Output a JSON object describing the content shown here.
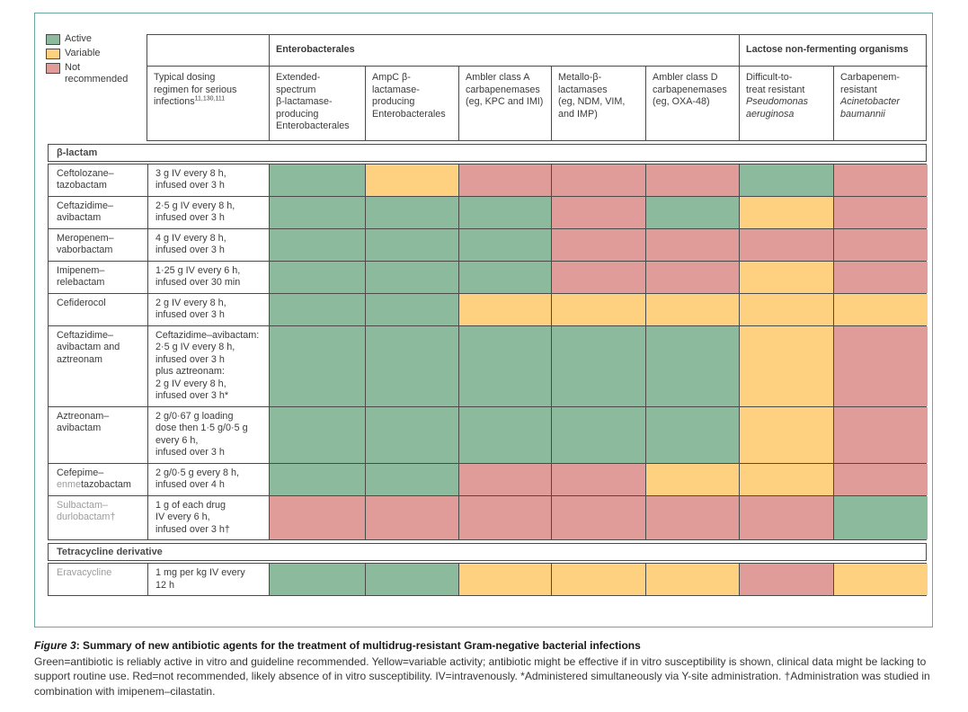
{
  "colors": {
    "green": "#8cba9d",
    "yellow": "#fdd17f",
    "red": "#e09c98",
    "grid_line": "#4a4a48",
    "frame_border": "#6aa9a0",
    "inactive_drug_text": "#9c9c9c"
  },
  "legend": {
    "items": [
      {
        "label": "Active",
        "key": "green",
        "color": "#8cba9d"
      },
      {
        "label": "Variable",
        "key": "yellow",
        "color": "#fdd17f"
      },
      {
        "label": "Not recommended",
        "key": "red",
        "color": "#e09c98"
      }
    ]
  },
  "header": {
    "groups": [
      {
        "label": "Enterobacterales",
        "span": 5
      },
      {
        "label": "Lactose non-fermenting organisms",
        "span": 2
      }
    ],
    "dosing_header": {
      "text": "Typical dosing\nregimen for serious\ninfections",
      "superscript": "11,130,111"
    },
    "columns": [
      {
        "text": "Extended-\nspectrum\nβ-lactamase-\nproducing\nEnterobacterales",
        "italic": ""
      },
      {
        "text": "AmpC β-\nlactamase-\nproducing\nEnterobacterales",
        "italic": ""
      },
      {
        "text": "Ambler class A\ncarbapenemases\n(eg, KPC and IMI)",
        "italic": ""
      },
      {
        "text": "Metallo-β-\nlactamases\n(eg, NDM, VIM,\nand IMP)",
        "italic": ""
      },
      {
        "text": "Ambler class D\ncarbapenemases\n(eg, OXA-48)",
        "italic": ""
      },
      {
        "text": "Difficult-to-\ntreat resistant",
        "italic": "Pseudomonas\naeruginosa"
      },
      {
        "text": "Carbapenem-\nresistant",
        "italic": "Acinetobacter\nbaumannii"
      }
    ]
  },
  "chart_data": {
    "type": "heatmap",
    "value_legend": {
      "green": "Active",
      "yellow": "Variable",
      "red": "Not recommended"
    },
    "columns": [
      "Extended-spectrum β-lactamase-producing Enterobacterales",
      "AmpC β-lactamase-producing Enterobacterales",
      "Ambler class A carbapenemases (eg, KPC and IMI)",
      "Metallo-β-lactamases (eg, NDM, VIM, and IMP)",
      "Ambler class D carbapenemases (eg, OXA-48)",
      "Difficult-to-treat resistant Pseudomonas aeruginosa",
      "Carbapenem-resistant Acinetobacter baumannii"
    ],
    "sections": [
      {
        "title": "β-lactam",
        "rows": [
          {
            "name_segments": [
              {
                "text": "Ceftolozane–\ntazobactam",
                "gray": false
              }
            ],
            "dosing": "3 g IV every 8 h,\ninfused over 3 h",
            "cells": [
              "green",
              "yellow",
              "red",
              "red",
              "red",
              "green",
              "red"
            ]
          },
          {
            "name_segments": [
              {
                "text": "Ceftazidime–\navibactam",
                "gray": false
              }
            ],
            "dosing": "2·5 g IV every 8 h,\ninfused over 3 h",
            "cells": [
              "green",
              "green",
              "green",
              "red",
              "green",
              "yellow",
              "red"
            ]
          },
          {
            "name_segments": [
              {
                "text": "Meropenem–\nvaborbactam",
                "gray": false
              }
            ],
            "dosing": "4 g IV every 8 h,\ninfused over 3 h",
            "cells": [
              "green",
              "green",
              "green",
              "red",
              "red",
              "red",
              "red"
            ]
          },
          {
            "name_segments": [
              {
                "text": "Imipenem–\nrelebactam",
                "gray": false
              }
            ],
            "dosing": "1·25 g IV every 6 h,\ninfused over 30 min",
            "cells": [
              "green",
              "green",
              "green",
              "red",
              "red",
              "yellow",
              "red"
            ]
          },
          {
            "name_segments": [
              {
                "text": "Cefiderocol",
                "gray": false
              }
            ],
            "dosing": "2 g IV every 8 h,\ninfused over 3 h",
            "cells": [
              "green",
              "green",
              "yellow",
              "yellow",
              "yellow",
              "yellow",
              "yellow"
            ]
          },
          {
            "name_segments": [
              {
                "text": "Ceftazidime–\navibactam and\naztreonam",
                "gray": false
              }
            ],
            "dosing": "Ceftazidime–avibactam:\n2·5 g IV every 8 h,\ninfused over 3 h\nplus aztreonam:\n2 g IV every 8 h,\ninfused over 3 h*",
            "cells": [
              "green",
              "green",
              "green",
              "green",
              "green",
              "yellow",
              "red"
            ]
          },
          {
            "name_segments": [
              {
                "text": "Aztreonam–\navibactam",
                "gray": false
              }
            ],
            "dosing": "2 g/0·67 g loading\ndose then 1·5 g/0·5 g\nevery 6 h,\ninfused over 3 h",
            "cells": [
              "green",
              "green",
              "green",
              "green",
              "green",
              "yellow",
              "red"
            ]
          },
          {
            "name_segments": [
              {
                "text": "Cefepime–\n",
                "gray": false
              },
              {
                "text": "enme",
                "gray": true
              },
              {
                "text": "tazobactam",
                "gray": false
              }
            ],
            "dosing": "2 g/0·5 g every 8 h,\ninfused over 4 h",
            "cells": [
              "green",
              "green",
              "red",
              "red",
              "yellow",
              "yellow",
              "red"
            ]
          },
          {
            "name_segments": [
              {
                "text": "Sulbactam–\ndurlobactam†",
                "gray": true
              }
            ],
            "dosing": "1 g of each drug\nIV every 6 h,\ninfused over 3 h†",
            "cells": [
              "red",
              "red",
              "red",
              "red",
              "red",
              "red",
              "green"
            ]
          }
        ]
      },
      {
        "title": "Tetracycline derivative",
        "rows": [
          {
            "name_segments": [
              {
                "text": "Eravacycline",
                "gray": true
              }
            ],
            "dosing": "1 mg per kg IV every\n12 h",
            "cells": [
              "green",
              "green",
              "yellow",
              "yellow",
              "yellow",
              "red",
              "yellow"
            ]
          }
        ]
      }
    ]
  },
  "caption": {
    "figure_label": "Figure 3",
    "title_separator": ": ",
    "title": "Summary of new antibiotic agents for the treatment of multidrug-resistant Gram-negative bacterial infections",
    "body": "Green=antibiotic is reliably active in vitro and guideline recommended. Yellow=variable activity; antibiotic might be effective if in vitro susceptibility is shown, clinical data might be lacking to support routine use. Red=not recommended, likely absence of in vitro susceptibility. IV=intravenously. *Administered simultaneously via Y-site administration. †Administration was studied in combination with imipenem–cilastatin."
  }
}
